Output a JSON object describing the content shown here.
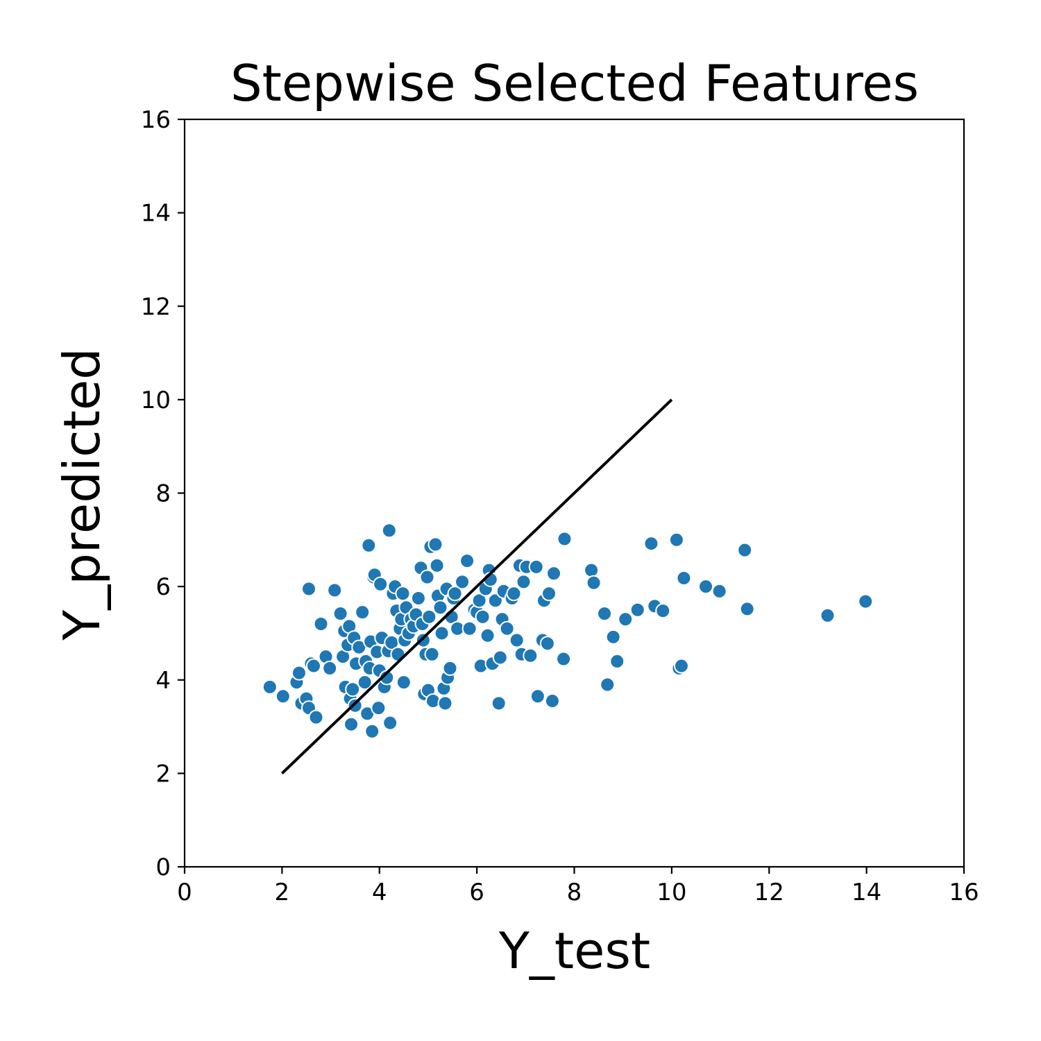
{
  "chart_data": {
    "type": "scatter",
    "title": "Stepwise Selected Features",
    "xlabel": "Y_test",
    "ylabel": "Y_predicted",
    "xlim": [
      0,
      16
    ],
    "ylim": [
      0,
      16
    ],
    "xticks": [
      "0",
      "2",
      "4",
      "6",
      "8",
      "10",
      "12",
      "14",
      "16"
    ],
    "yticks": [
      "0",
      "2",
      "4",
      "6",
      "8",
      "10",
      "12",
      "14",
      "16"
    ],
    "grid": false,
    "point_color": "#1f77b4",
    "line_color": "#000000",
    "reference_line": {
      "x": [
        2,
        10
      ],
      "y": [
        2,
        10
      ]
    },
    "points": [
      [
        1.75,
        3.85
      ],
      [
        2.02,
        3.65
      ],
      [
        2.3,
        3.95
      ],
      [
        2.35,
        4.15
      ],
      [
        2.4,
        3.5
      ],
      [
        2.5,
        3.6
      ],
      [
        2.55,
        3.4
      ],
      [
        2.6,
        4.35
      ],
      [
        2.65,
        4.3
      ],
      [
        2.7,
        3.2
      ],
      [
        2.55,
        5.95
      ],
      [
        2.8,
        5.2
      ],
      [
        2.9,
        4.5
      ],
      [
        2.98,
        4.25
      ],
      [
        3.08,
        5.92
      ],
      [
        3.2,
        5.42
      ],
      [
        3.25,
        4.5
      ],
      [
        3.28,
        5.05
      ],
      [
        3.3,
        3.85
      ],
      [
        3.35,
        4.75
      ],
      [
        3.38,
        5.15
      ],
      [
        3.4,
        3.6
      ],
      [
        3.42,
        3.05
      ],
      [
        3.45,
        3.8
      ],
      [
        3.48,
        4.9
      ],
      [
        3.5,
        3.45
      ],
      [
        3.52,
        4.35
      ],
      [
        3.58,
        4.7
      ],
      [
        3.65,
        5.45
      ],
      [
        3.7,
        3.95
      ],
      [
        3.72,
        4.4
      ],
      [
        3.75,
        3.28
      ],
      [
        3.78,
        6.88
      ],
      [
        3.8,
        4.25
      ],
      [
        3.82,
        4.82
      ],
      [
        3.85,
        2.9
      ],
      [
        3.88,
        6.2
      ],
      [
        3.9,
        6.25
      ],
      [
        3.95,
        4.6
      ],
      [
        3.98,
        3.4
      ],
      [
        4.0,
        4.2
      ],
      [
        4.02,
        6.05
      ],
      [
        4.05,
        4.9
      ],
      [
        4.1,
        3.85
      ],
      [
        4.15,
        4.05
      ],
      [
        4.18,
        4.62
      ],
      [
        4.2,
        7.2
      ],
      [
        4.22,
        3.08
      ],
      [
        4.25,
        4.8
      ],
      [
        4.28,
        5.85
      ],
      [
        4.32,
        6.0
      ],
      [
        4.35,
        5.48
      ],
      [
        4.38,
        4.55
      ],
      [
        4.42,
        5.1
      ],
      [
        4.45,
        5.3
      ],
      [
        4.48,
        5.85
      ],
      [
        4.5,
        3.95
      ],
      [
        4.52,
        4.85
      ],
      [
        4.55,
        5.55
      ],
      [
        4.6,
        5.0
      ],
      [
        4.65,
        5.3
      ],
      [
        4.7,
        5.15
      ],
      [
        4.75,
        5.4
      ],
      [
        4.8,
        5.75
      ],
      [
        4.85,
        6.4
      ],
      [
        4.88,
        5.2
      ],
      [
        4.9,
        4.85
      ],
      [
        4.92,
        3.7
      ],
      [
        4.95,
        4.55
      ],
      [
        4.98,
        6.2
      ],
      [
        5.0,
        3.78
      ],
      [
        5.02,
        5.35
      ],
      [
        5.05,
        6.85
      ],
      [
        5.08,
        4.55
      ],
      [
        5.1,
        3.55
      ],
      [
        5.15,
        6.9
      ],
      [
        5.18,
        6.45
      ],
      [
        5.2,
        5.8
      ],
      [
        5.25,
        5.55
      ],
      [
        5.28,
        5.0
      ],
      [
        5.32,
        3.82
      ],
      [
        5.35,
        3.5
      ],
      [
        5.38,
        5.95
      ],
      [
        5.4,
        4.05
      ],
      [
        5.45,
        4.25
      ],
      [
        5.48,
        5.35
      ],
      [
        5.52,
        5.75
      ],
      [
        5.55,
        5.85
      ],
      [
        5.6,
        5.1
      ],
      [
        5.7,
        6.1
      ],
      [
        5.8,
        6.55
      ],
      [
        5.85,
        5.1
      ],
      [
        5.95,
        5.5
      ],
      [
        6.0,
        5.45
      ],
      [
        6.05,
        5.7
      ],
      [
        6.08,
        4.3
      ],
      [
        6.12,
        5.35
      ],
      [
        6.18,
        5.95
      ],
      [
        6.22,
        4.95
      ],
      [
        6.25,
        6.35
      ],
      [
        6.28,
        6.15
      ],
      [
        6.32,
        4.35
      ],
      [
        6.38,
        5.7
      ],
      [
        6.45,
        3.5
      ],
      [
        6.48,
        4.48
      ],
      [
        6.52,
        5.3
      ],
      [
        6.55,
        5.9
      ],
      [
        6.62,
        5.1
      ],
      [
        6.72,
        5.75
      ],
      [
        6.76,
        5.85
      ],
      [
        6.82,
        4.85
      ],
      [
        6.88,
        6.45
      ],
      [
        6.92,
        4.55
      ],
      [
        6.96,
        6.1
      ],
      [
        7.02,
        6.42
      ],
      [
        7.1,
        4.52
      ],
      [
        7.22,
        6.42
      ],
      [
        7.25,
        3.65
      ],
      [
        7.35,
        4.85
      ],
      [
        7.38,
        5.7
      ],
      [
        7.45,
        4.78
      ],
      [
        7.48,
        5.85
      ],
      [
        7.55,
        3.55
      ],
      [
        7.58,
        6.28
      ],
      [
        7.8,
        7.02
      ],
      [
        7.78,
        4.45
      ],
      [
        8.35,
        6.35
      ],
      [
        8.4,
        6.08
      ],
      [
        8.62,
        5.42
      ],
      [
        8.68,
        3.9
      ],
      [
        8.8,
        4.92
      ],
      [
        8.88,
        4.4
      ],
      [
        9.05,
        5.3
      ],
      [
        9.3,
        5.5
      ],
      [
        9.58,
        6.92
      ],
      [
        9.65,
        5.58
      ],
      [
        9.82,
        5.48
      ],
      [
        10.1,
        7.0
      ],
      [
        10.15,
        4.25
      ],
      [
        10.2,
        4.3
      ],
      [
        10.25,
        6.18
      ],
      [
        10.7,
        6.0
      ],
      [
        10.98,
        5.9
      ],
      [
        11.5,
        6.78
      ],
      [
        11.55,
        5.52
      ],
      [
        13.2,
        5.38
      ],
      [
        13.98,
        5.68
      ]
    ]
  }
}
